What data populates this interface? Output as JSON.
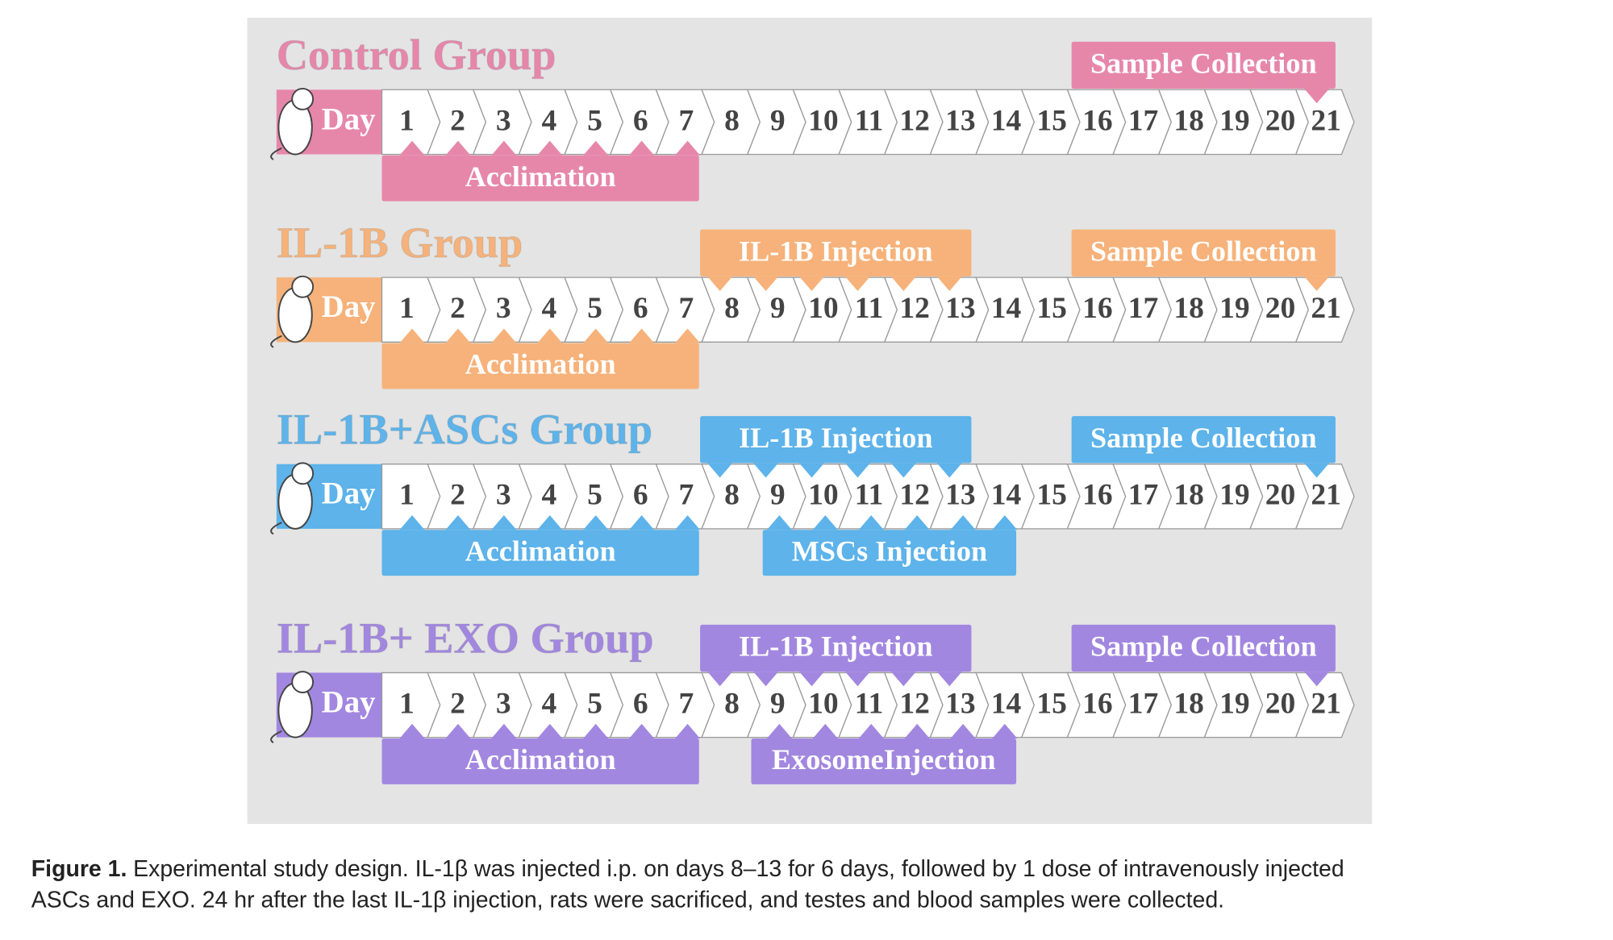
{
  "groups": [
    {
      "title": "Control Group",
      "color": "#e687aa",
      "day_label": "Day",
      "days": [
        "1",
        "2",
        "3",
        "4",
        "5",
        "6",
        "7",
        "8",
        "9",
        "10",
        "11",
        "12",
        "13",
        "14",
        "15",
        "16",
        "17",
        "18",
        "19",
        "20",
        "21"
      ],
      "phases": [
        {
          "label": "Sample Collection"
        },
        {
          "label": "Acclimation"
        }
      ]
    },
    {
      "title": "IL-1B Group",
      "color": "#f6b27a",
      "day_label": "Day",
      "days": [
        "1",
        "2",
        "3",
        "4",
        "5",
        "6",
        "7",
        "8",
        "9",
        "10",
        "11",
        "12",
        "13",
        "14",
        "15",
        "16",
        "17",
        "18",
        "19",
        "20",
        "21"
      ],
      "phases": [
        {
          "label": "IL-1B Injection"
        },
        {
          "label": "Sample Collection"
        },
        {
          "label": "Acclimation"
        }
      ]
    },
    {
      "title": "IL-1B+ASCs Group",
      "color": "#5db3ea",
      "day_label": "Day",
      "days": [
        "1",
        "2",
        "3",
        "4",
        "5",
        "6",
        "7",
        "8",
        "9",
        "10",
        "11",
        "12",
        "13",
        "14",
        "15",
        "16",
        "17",
        "18",
        "19",
        "20",
        "21"
      ],
      "phases": [
        {
          "label": "IL-1B Injection"
        },
        {
          "label": "Sample Collection"
        },
        {
          "label": "Acclimation"
        },
        {
          "label": "MSCs Injection"
        }
      ]
    },
    {
      "title": "IL-1B+ EXO Group",
      "color": "#a287e0",
      "day_label": "Day",
      "days": [
        "1",
        "2",
        "3",
        "4",
        "5",
        "6",
        "7",
        "8",
        "9",
        "10",
        "11",
        "12",
        "13",
        "14",
        "15",
        "16",
        "17",
        "18",
        "19",
        "20",
        "21"
      ],
      "phases": [
        {
          "label": "IL-1B Injection"
        },
        {
          "label": "Sample Collection"
        },
        {
          "label": "Acclimation"
        },
        {
          "label": "ExosomeInjection"
        }
      ]
    }
  ],
  "caption": {
    "label": "Figure 1.",
    "lines": [
      "Experimental study design. IL-1β was injected i.p. on days 8–13 for 6 days, followed by 1 dose of intravenously injected",
      "ASCs and EXO. 24 hr after the last IL-1β injection, rats were sacrificed, and testes and blood samples were collected."
    ]
  }
}
